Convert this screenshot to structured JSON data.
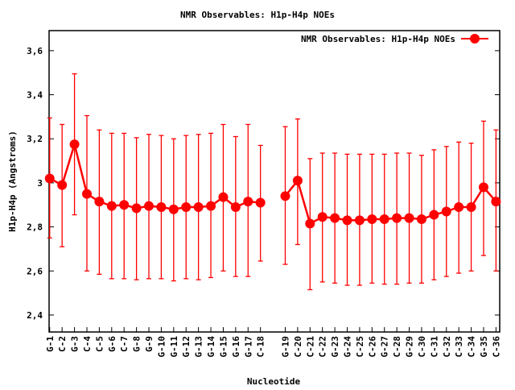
{
  "chart_data": {
    "type": "line",
    "title": "NMR Observables: H1p-H4p NOEs",
    "xlabel": "Nucleotide",
    "ylabel": "H1p-H4p (Angstroms)",
    "ylim": [
      2.323,
      3.691
    ],
    "xlim": [
      0.95,
      37.3
    ],
    "yticks": [
      2.4,
      2.6,
      2.8,
      3,
      3.2,
      3.4,
      3.6
    ],
    "ytick_labels": [
      "2,4",
      "2,6",
      "2,8",
      "3",
      "3,2",
      "3,4",
      "3,6"
    ],
    "legend": {
      "label": "NMR Observables: H1p-H4p NOEs",
      "position": "top-right"
    },
    "color": "#ff0000",
    "points": [
      {
        "label": "G-1",
        "x": 1,
        "y": 3.02,
        "lo": 2.75,
        "hi": 3.295
      },
      {
        "label": "C-2",
        "x": 2,
        "y": 2.99,
        "lo": 2.71,
        "hi": 3.265
      },
      {
        "label": "G-3",
        "x": 3,
        "y": 3.175,
        "lo": 2.855,
        "hi": 3.495
      },
      {
        "label": "C-4",
        "x": 4,
        "y": 2.95,
        "lo": 2.6,
        "hi": 3.305
      },
      {
        "label": "C-5",
        "x": 5,
        "y": 2.915,
        "lo": 2.585,
        "hi": 3.24
      },
      {
        "label": "G-6",
        "x": 6,
        "y": 2.895,
        "lo": 2.565,
        "hi": 3.225
      },
      {
        "label": "C-7",
        "x": 7,
        "y": 2.9,
        "lo": 2.565,
        "hi": 3.225
      },
      {
        "label": "G-8",
        "x": 8,
        "y": 2.885,
        "lo": 2.56,
        "hi": 3.205
      },
      {
        "label": "G-9",
        "x": 9,
        "y": 2.895,
        "lo": 2.565,
        "hi": 3.22
      },
      {
        "label": "G-10",
        "x": 10,
        "y": 2.89,
        "lo": 2.565,
        "hi": 3.215
      },
      {
        "label": "G-11",
        "x": 11,
        "y": 2.88,
        "lo": 2.555,
        "hi": 3.2
      },
      {
        "label": "G-12",
        "x": 12,
        "y": 2.89,
        "lo": 2.565,
        "hi": 3.215
      },
      {
        "label": "G-13",
        "x": 13,
        "y": 2.89,
        "lo": 2.56,
        "hi": 3.22
      },
      {
        "label": "G-14",
        "x": 14,
        "y": 2.895,
        "lo": 2.57,
        "hi": 3.225
      },
      {
        "label": "G-15",
        "x": 15,
        "y": 2.935,
        "lo": 2.6,
        "hi": 3.265
      },
      {
        "label": "G-16",
        "x": 16,
        "y": 2.89,
        "lo": 2.575,
        "hi": 3.21
      },
      {
        "label": "G-17",
        "x": 17,
        "y": 2.915,
        "lo": 2.575,
        "hi": 3.265
      },
      {
        "label": "C-18",
        "x": 18,
        "y": 2.91,
        "lo": 2.645,
        "hi": 3.17
      },
      {
        "label": "G-19",
        "x": 20,
        "y": 2.94,
        "lo": 2.63,
        "hi": 3.255
      },
      {
        "label": "C-20",
        "x": 21,
        "y": 3.01,
        "lo": 2.72,
        "hi": 3.29
      },
      {
        "label": "C-21",
        "x": 22,
        "y": 2.815,
        "lo": 2.515,
        "hi": 3.11
      },
      {
        "label": "C-22",
        "x": 23,
        "y": 2.845,
        "lo": 2.55,
        "hi": 3.135
      },
      {
        "label": "G-23",
        "x": 24,
        "y": 2.84,
        "lo": 2.545,
        "hi": 3.135
      },
      {
        "label": "G-24",
        "x": 25,
        "y": 2.83,
        "lo": 2.535,
        "hi": 3.13
      },
      {
        "label": "C-25",
        "x": 26,
        "y": 2.83,
        "lo": 2.535,
        "hi": 3.13
      },
      {
        "label": "C-26",
        "x": 27,
        "y": 2.835,
        "lo": 2.545,
        "hi": 3.13
      },
      {
        "label": "G-27",
        "x": 28,
        "y": 2.835,
        "lo": 2.54,
        "hi": 3.13
      },
      {
        "label": "C-28",
        "x": 29,
        "y": 2.84,
        "lo": 2.54,
        "hi": 3.135
      },
      {
        "label": "G-29",
        "x": 30,
        "y": 2.84,
        "lo": 2.545,
        "hi": 3.135
      },
      {
        "label": "C-30",
        "x": 31,
        "y": 2.835,
        "lo": 2.545,
        "hi": 3.125
      },
      {
        "label": "C-31",
        "x": 32,
        "y": 2.855,
        "lo": 2.56,
        "hi": 3.15
      },
      {
        "label": "C-32",
        "x": 33,
        "y": 2.87,
        "lo": 2.575,
        "hi": 3.165
      },
      {
        "label": "C-33",
        "x": 34,
        "y": 2.89,
        "lo": 2.59,
        "hi": 3.185
      },
      {
        "label": "C-34",
        "x": 35,
        "y": 2.89,
        "lo": 2.6,
        "hi": 3.18
      },
      {
        "label": "G-35",
        "x": 36,
        "y": 2.98,
        "lo": 2.67,
        "hi": 3.28
      },
      {
        "label": "C-36",
        "x": 37,
        "y": 2.915,
        "lo": 2.6,
        "hi": 3.24
      }
    ]
  }
}
